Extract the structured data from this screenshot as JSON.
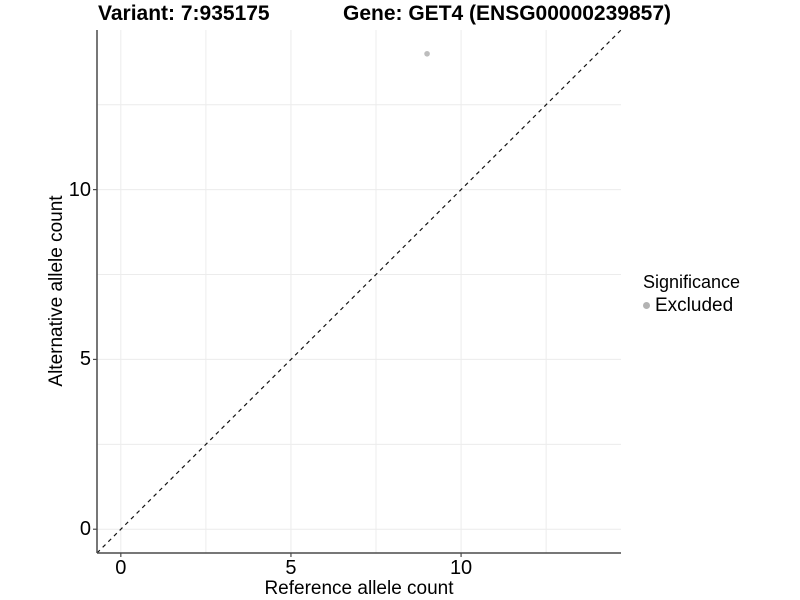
{
  "chart_data": {
    "type": "scatter",
    "title_left": "Variant: 7:935175",
    "title_right": "Gene: GET4 (ENSG00000239857)",
    "xlabel": "Reference allele count",
    "ylabel": "Alternative allele count",
    "xlim": [
      -0.7,
      14.7
    ],
    "ylim": [
      -0.7,
      14.7
    ],
    "x_ticks": [
      0,
      5,
      10
    ],
    "y_ticks": [
      0,
      5,
      10
    ],
    "grid_lines": [
      0,
      2.5,
      5,
      7.5,
      10,
      12.5
    ],
    "grid": true,
    "points": [
      {
        "x": 9,
        "y": 14,
        "series": "Excluded"
      }
    ],
    "reference_line": {
      "type": "identity",
      "style": "dashed",
      "slope": 1,
      "intercept": 0
    },
    "legend": {
      "title": "Significance",
      "position": "right",
      "entries": [
        {
          "label": "Excluded",
          "color": "#b3b3b3"
        }
      ]
    },
    "colors": {
      "point": "#bdbdbd",
      "legend_key": "#b3b3b3",
      "axis": "#4a4a4a",
      "grid": "#ececec",
      "dashed_line": "#141414",
      "text": "#000000"
    }
  }
}
